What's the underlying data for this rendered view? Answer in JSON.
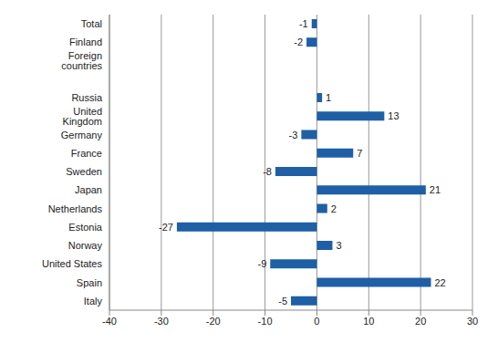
{
  "chart_data": {
    "type": "bar",
    "orientation": "horizontal",
    "categories": [
      "Total",
      "Finland",
      "Foreign countries",
      null,
      "Russia",
      "United Kingdom",
      "Germany",
      "France",
      "Sweden",
      "Japan",
      "Netherlands",
      "Estonia",
      "Norway",
      "United States",
      "Spain",
      "Italy"
    ],
    "values": [
      -1,
      -2,
      0,
      null,
      1,
      13,
      -3,
      7,
      -8,
      21,
      2,
      -27,
      3,
      -9,
      22,
      -5
    ],
    "color": "#1f5fa6",
    "xlim": [
      -40,
      30
    ],
    "xticks": [
      -40,
      -30,
      -20,
      -10,
      0,
      10,
      20,
      30
    ],
    "grid": true,
    "data_labels": true
  }
}
